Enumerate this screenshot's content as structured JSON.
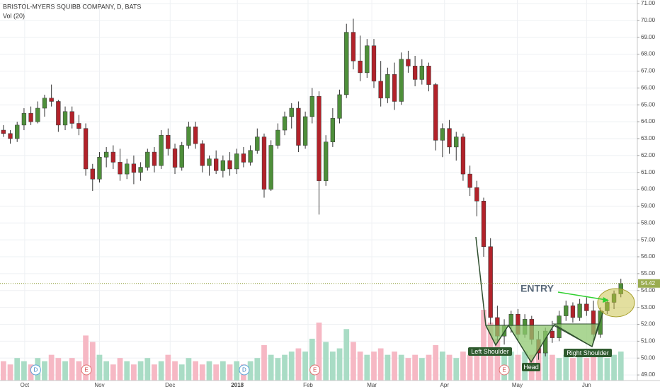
{
  "chart_data": {
    "type": "candlestick",
    "title": "BRISTOL-MYERS SQUIBB COMPANY, D, BATS",
    "subtitle": "Vol (20)",
    "ohlc": [
      [
        63.5,
        63.8,
        63.1,
        63.3
      ],
      [
        63.3,
        63.5,
        62.7,
        63.0
      ],
      [
        63.0,
        64.0,
        62.8,
        63.8
      ],
      [
        63.8,
        64.8,
        63.5,
        64.5
      ],
      [
        64.5,
        64.9,
        63.8,
        64.0
      ],
      [
        64.0,
        65.2,
        63.9,
        64.8
      ],
      [
        64.8,
        65.6,
        64.3,
        65.4
      ],
      [
        65.4,
        66.2,
        64.9,
        65.2
      ],
      [
        65.2,
        65.3,
        63.4,
        63.8
      ],
      [
        63.8,
        64.9,
        63.5,
        64.6
      ],
      [
        64.6,
        64.9,
        63.6,
        63.9
      ],
      [
        63.9,
        64.4,
        63.2,
        63.6
      ],
      [
        63.6,
        63.9,
        60.8,
        61.2
      ],
      [
        61.2,
        61.5,
        59.9,
        60.6
      ],
      [
        60.6,
        62.2,
        60.4,
        61.9
      ],
      [
        61.9,
        62.5,
        61.3,
        62.2
      ],
      [
        62.2,
        62.6,
        61.2,
        61.6
      ],
      [
        61.6,
        62.4,
        60.5,
        60.9
      ],
      [
        60.9,
        61.8,
        60.6,
        61.5
      ],
      [
        61.5,
        62.0,
        60.3,
        61.0
      ],
      [
        61.0,
        61.6,
        60.5,
        61.3
      ],
      [
        61.3,
        62.4,
        61.1,
        62.2
      ],
      [
        62.2,
        62.5,
        61.0,
        61.4
      ],
      [
        61.4,
        63.5,
        61.2,
        63.2
      ],
      [
        63.2,
        63.6,
        62.0,
        62.4
      ],
      [
        62.4,
        62.7,
        60.9,
        61.3
      ],
      [
        61.3,
        62.8,
        61.1,
        62.6
      ],
      [
        62.6,
        64.0,
        62.4,
        63.7
      ],
      [
        63.7,
        64.0,
        62.4,
        62.7
      ],
      [
        62.7,
        62.9,
        61.0,
        61.4
      ],
      [
        61.4,
        62.0,
        60.8,
        61.8
      ],
      [
        61.8,
        62.3,
        60.9,
        61.1
      ],
      [
        61.1,
        62.0,
        60.7,
        61.7
      ],
      [
        61.7,
        62.2,
        60.8,
        61.2
      ],
      [
        61.2,
        62.4,
        60.9,
        62.1
      ],
      [
        62.1,
        62.5,
        61.3,
        61.6
      ],
      [
        61.6,
        62.6,
        61.4,
        62.3
      ],
      [
        62.3,
        63.6,
        62.1,
        63.1
      ],
      [
        63.1,
        63.3,
        59.5,
        60.0
      ],
      [
        60.0,
        62.9,
        59.9,
        62.6
      ],
      [
        62.6,
        63.9,
        62.4,
        63.5
      ],
      [
        63.5,
        64.6,
        63.2,
        64.3
      ],
      [
        64.3,
        65.1,
        63.6,
        64.8
      ],
      [
        64.8,
        65.2,
        62.2,
        62.6
      ],
      [
        62.6,
        64.6,
        62.4,
        64.3
      ],
      [
        64.3,
        66.0,
        63.9,
        65.5
      ],
      [
        65.5,
        65.8,
        58.5,
        60.5
      ],
      [
        60.5,
        63.2,
        60.2,
        62.8
      ],
      [
        62.8,
        64.8,
        62.5,
        64.2
      ],
      [
        64.2,
        65.9,
        63.9,
        65.6
      ],
      [
        65.6,
        69.8,
        65.4,
        69.3
      ],
      [
        69.3,
        70.1,
        67.1,
        67.6
      ],
      [
        67.6,
        69.1,
        66.4,
        66.9
      ],
      [
        66.9,
        68.9,
        66.6,
        68.5
      ],
      [
        68.5,
        68.9,
        66.0,
        66.4
      ],
      [
        66.4,
        67.6,
        64.9,
        65.4
      ],
      [
        65.4,
        67.2,
        65.1,
        66.8
      ],
      [
        66.8,
        67.5,
        64.7,
        65.2
      ],
      [
        65.2,
        68.1,
        65.0,
        67.7
      ],
      [
        67.7,
        68.2,
        66.9,
        67.3
      ],
      [
        67.3,
        67.9,
        66.1,
        66.5
      ],
      [
        66.5,
        67.7,
        66.2,
        67.3
      ],
      [
        67.3,
        67.5,
        65.8,
        66.2
      ],
      [
        66.2,
        66.3,
        62.3,
        62.9
      ],
      [
        62.9,
        63.9,
        61.9,
        63.6
      ],
      [
        63.6,
        64.1,
        62.1,
        62.5
      ],
      [
        62.5,
        63.4,
        61.7,
        63.1
      ],
      [
        63.1,
        63.3,
        60.5,
        60.9
      ],
      [
        60.9,
        61.4,
        59.6,
        60.1
      ],
      [
        60.1,
        60.5,
        58.4,
        59.3
      ],
      [
        59.3,
        59.5,
        56.0,
        56.6
      ],
      [
        56.6,
        57.1,
        52.0,
        52.4
      ],
      [
        52.4,
        53.1,
        50.9,
        51.3
      ],
      [
        51.3,
        52.3,
        50.8,
        51.9
      ],
      [
        51.9,
        52.8,
        51.5,
        52.6
      ],
      [
        52.6,
        52.9,
        51.0,
        51.4
      ],
      [
        51.4,
        52.6,
        51.2,
        52.3
      ],
      [
        52.3,
        52.5,
        50.8,
        51.1
      ],
      [
        51.1,
        51.6,
        49.9,
        50.3
      ],
      [
        50.3,
        51.8,
        50.1,
        51.6
      ],
      [
        51.6,
        52.2,
        50.9,
        51.2
      ],
      [
        51.2,
        52.8,
        51.0,
        52.5
      ],
      [
        52.5,
        53.4,
        52.2,
        53.1
      ],
      [
        53.1,
        53.3,
        52.1,
        52.4
      ],
      [
        52.4,
        53.5,
        52.2,
        53.2
      ],
      [
        53.2,
        53.6,
        52.5,
        52.8
      ],
      [
        52.8,
        53.4,
        50.9,
        51.4
      ],
      [
        51.4,
        53.0,
        51.2,
        52.8
      ],
      [
        52.8,
        53.5,
        52.6,
        53.3
      ],
      [
        53.3,
        54.0,
        52.9,
        53.8
      ],
      [
        53.8,
        54.7,
        53.6,
        54.42
      ]
    ],
    "volume": [
      6,
      5,
      7,
      6,
      5,
      7,
      6,
      8,
      7,
      6,
      7,
      6,
      14,
      12,
      8,
      6,
      5,
      7,
      6,
      5,
      6,
      7,
      5,
      6,
      8,
      6,
      5,
      7,
      6,
      5,
      6,
      5,
      6,
      5,
      6,
      5,
      6,
      7,
      11,
      8,
      7,
      8,
      9,
      10,
      9,
      13,
      18,
      12,
      9,
      10,
      16,
      12,
      9,
      8,
      9,
      10,
      8,
      9,
      8,
      7,
      8,
      7,
      8,
      11,
      9,
      8,
      7,
      9,
      8,
      10,
      22,
      18,
      13,
      10,
      9,
      8,
      9,
      8,
      10,
      9,
      8,
      7,
      8,
      7,
      8,
      7,
      9,
      8,
      7,
      8,
      9
    ],
    "xlim": [
      -0.5,
      92.4
    ],
    "xticks": [
      {
        "value": 3.1,
        "label": "Oct"
      },
      {
        "value": 14,
        "label": "Nov"
      },
      {
        "value": 24.3,
        "label": "Dec"
      },
      {
        "value": 34.1,
        "label": "2018"
      },
      {
        "value": 44.4,
        "label": "Feb"
      },
      {
        "value": 53.7,
        "label": "Mar"
      },
      {
        "value": 64.3,
        "label": "Apr"
      },
      {
        "value": 74.9,
        "label": "May"
      },
      {
        "value": 85,
        "label": "Jun"
      }
    ],
    "ylim": [
      48.67,
      71.21
    ],
    "yticks": [
      {
        "value": 49,
        "label": "49.00"
      },
      {
        "value": 50,
        "label": "50.00"
      },
      {
        "value": 51,
        "label": "51.00"
      },
      {
        "value": 52,
        "label": "52.00"
      },
      {
        "value": 53,
        "label": "53.00"
      },
      {
        "value": 54,
        "label": "54.00"
      },
      {
        "value": 55,
        "label": "55.00"
      },
      {
        "value": 56,
        "label": "56.00"
      },
      {
        "value": 57,
        "label": "57.00"
      },
      {
        "value": 58,
        "label": "58.00"
      },
      {
        "value": 59,
        "label": "59.00"
      },
      {
        "value": 60,
        "label": "60.00"
      },
      {
        "value": 61,
        "label": "61.00"
      },
      {
        "value": 62,
        "label": "62.00"
      },
      {
        "value": 63,
        "label": "63.00"
      },
      {
        "value": 64,
        "label": "64.00"
      },
      {
        "value": 65,
        "label": "65.00"
      },
      {
        "value": 66,
        "label": "66.00"
      },
      {
        "value": 67,
        "label": "67.00"
      },
      {
        "value": 68,
        "label": "68.00"
      },
      {
        "value": 69,
        "label": "69.00"
      },
      {
        "value": 70,
        "label": "70.00"
      },
      {
        "value": 71,
        "label": "71.00"
      }
    ],
    "last_price": 54.42,
    "events": [
      {
        "label": "D",
        "index": 4.7
      },
      {
        "label": "E",
        "index": 12.1
      },
      {
        "label": "D",
        "index": 35.1
      },
      {
        "label": "E",
        "index": 45.4
      },
      {
        "label": "E",
        "index": 73
      }
    ],
    "grid": true,
    "up_color": "#4e8f3a",
    "down_color": "#b2222a",
    "annotations": {
      "entry": "ENTRY",
      "left_shoulder": "Left Shoulder",
      "head": "Head",
      "right_shoulder": "Right Shoulder"
    }
  }
}
